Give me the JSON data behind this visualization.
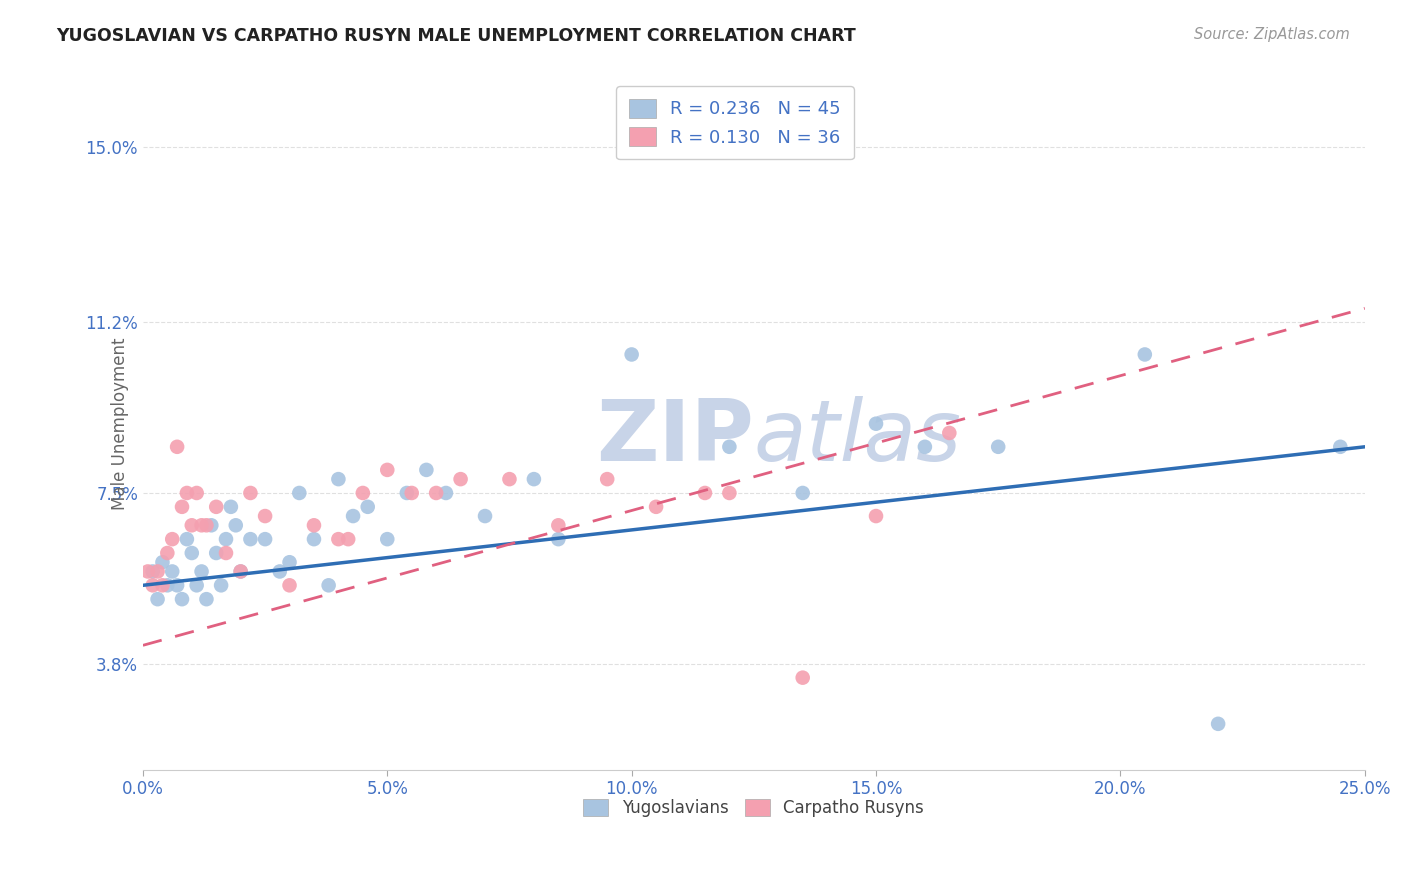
{
  "title": "YUGOSLAVIAN VS CARPATHO RUSYN MALE UNEMPLOYMENT CORRELATION CHART",
  "source": "Source: ZipAtlas.com",
  "ylabel": "Male Unemployment",
  "xlabel_ticks": [
    "0.0%",
    "5.0%",
    "10.0%",
    "15.0%",
    "20.0%",
    "25.0%"
  ],
  "xlabel_vals": [
    0.0,
    5.0,
    10.0,
    15.0,
    20.0,
    25.0
  ],
  "ylabel_ticks_labels": [
    "3.8%",
    "7.5%",
    "11.2%",
    "15.0%"
  ],
  "ylabel_ticks_vals": [
    3.8,
    7.5,
    11.2,
    15.0
  ],
  "xlim": [
    0.0,
    25.0
  ],
  "ylim": [
    1.5,
    16.5
  ],
  "r_yug": 0.236,
  "n_yug": 45,
  "r_carp": 0.13,
  "n_carp": 36,
  "yug_color": "#a8c4e0",
  "carp_color": "#f4a0b0",
  "line_yug_color": "#2e6db4",
  "line_carp_color": "#e06080",
  "watermark_color": "#c8d4e8",
  "background_color": "#ffffff",
  "grid_color": "#e0e0e0",
  "title_color": "#222222",
  "source_color": "#999999",
  "tick_color": "#4472c4",
  "ylabel_color": "#666666",
  "yug_x": [
    0.2,
    0.3,
    0.4,
    0.5,
    0.6,
    0.7,
    0.8,
    0.9,
    1.0,
    1.1,
    1.2,
    1.3,
    1.4,
    1.5,
    1.6,
    1.7,
    1.8,
    1.9,
    2.0,
    2.2,
    2.5,
    2.8,
    3.0,
    3.2,
    3.5,
    3.8,
    4.0,
    4.3,
    4.6,
    5.0,
    5.4,
    5.8,
    6.2,
    7.0,
    8.0,
    8.5,
    10.0,
    12.0,
    13.5,
    15.0,
    16.0,
    17.5,
    20.5,
    22.0,
    24.5
  ],
  "yug_y": [
    5.8,
    5.2,
    6.0,
    5.5,
    5.8,
    5.5,
    5.2,
    6.5,
    6.2,
    5.5,
    5.8,
    5.2,
    6.8,
    6.2,
    5.5,
    6.5,
    7.2,
    6.8,
    5.8,
    6.5,
    6.5,
    5.8,
    6.0,
    7.5,
    6.5,
    5.5,
    7.8,
    7.0,
    7.2,
    6.5,
    7.5,
    8.0,
    7.5,
    7.0,
    7.8,
    6.5,
    10.5,
    8.5,
    7.5,
    9.0,
    8.5,
    8.5,
    10.5,
    2.5,
    8.5
  ],
  "carp_x": [
    0.1,
    0.2,
    0.3,
    0.4,
    0.5,
    0.6,
    0.7,
    0.8,
    0.9,
    1.0,
    1.1,
    1.2,
    1.3,
    1.5,
    1.7,
    2.0,
    2.2,
    2.5,
    3.0,
    3.5,
    4.0,
    4.2,
    4.5,
    5.0,
    5.5,
    6.0,
    6.5,
    7.5,
    8.5,
    9.5,
    10.5,
    11.5,
    12.0,
    13.5,
    15.0,
    16.5
  ],
  "carp_y": [
    5.8,
    5.5,
    5.8,
    5.5,
    6.2,
    6.5,
    8.5,
    7.2,
    7.5,
    6.8,
    7.5,
    6.8,
    6.8,
    7.2,
    6.2,
    5.8,
    7.5,
    7.0,
    5.5,
    6.8,
    6.5,
    6.5,
    7.5,
    8.0,
    7.5,
    7.5,
    7.8,
    7.8,
    6.8,
    7.8,
    7.2,
    7.5,
    7.5,
    3.5,
    7.0,
    8.8
  ],
  "line_yug_x0": 0.0,
  "line_yug_y0": 5.5,
  "line_yug_x1": 25.0,
  "line_yug_y1": 8.5,
  "line_carp_x0": 0.0,
  "line_carp_y0": 4.2,
  "line_carp_x1": 25.0,
  "line_carp_y1": 11.5
}
